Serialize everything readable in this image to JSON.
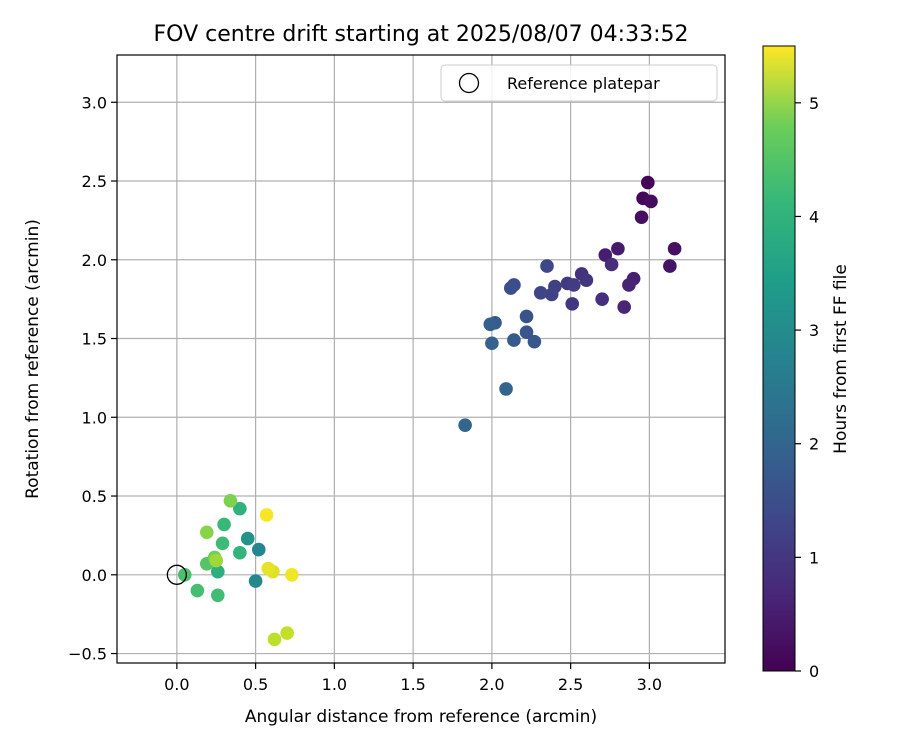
{
  "chart_data": {
    "type": "scatter",
    "title": "FOV centre drift starting at 2025/08/07 04:33:52",
    "xlabel": "Angular distance from reference (arcmin)",
    "ylabel": "Rotation from reference (arcmin)",
    "xlim": [
      -0.38,
      3.48
    ],
    "ylim": [
      -0.56,
      3.3
    ],
    "xticks": [
      "0.0",
      "0.5",
      "1.0",
      "1.5",
      "2.0",
      "2.5",
      "3.0"
    ],
    "yticks": [
      "−0.5",
      "0.0",
      "0.5",
      "1.0",
      "1.5",
      "2.0",
      "2.5",
      "3.0"
    ],
    "grid": true,
    "colormap": "viridis",
    "colorbar": {
      "label": "Hours from first FF file",
      "range": [
        0,
        5.5
      ],
      "ticks": [
        "0",
        "1",
        "2",
        "3",
        "4",
        "5"
      ]
    },
    "legend": {
      "placement": "top-right",
      "entries": [
        {
          "label": "Reference platepar",
          "marker": "open-circle"
        }
      ]
    },
    "reference": {
      "x": 0.0,
      "y": 0.0
    },
    "points": [
      {
        "x": 2.99,
        "y": 2.49,
        "c": 0.05
      },
      {
        "x": 2.96,
        "y": 2.39,
        "c": 0.1
      },
      {
        "x": 3.01,
        "y": 2.37,
        "c": 0.15
      },
      {
        "x": 2.95,
        "y": 2.27,
        "c": 0.2
      },
      {
        "x": 3.16,
        "y": 2.07,
        "c": 0.25
      },
      {
        "x": 3.13,
        "y": 1.96,
        "c": 0.3
      },
      {
        "x": 2.8,
        "y": 2.07,
        "c": 0.4
      },
      {
        "x": 2.72,
        "y": 2.03,
        "c": 0.45
      },
      {
        "x": 2.9,
        "y": 1.88,
        "c": 0.5
      },
      {
        "x": 2.87,
        "y": 1.84,
        "c": 0.55
      },
      {
        "x": 2.84,
        "y": 1.7,
        "c": 0.6
      },
      {
        "x": 2.76,
        "y": 1.97,
        "c": 0.7
      },
      {
        "x": 2.7,
        "y": 1.75,
        "c": 0.75
      },
      {
        "x": 2.57,
        "y": 1.91,
        "c": 0.8
      },
      {
        "x": 2.6,
        "y": 1.87,
        "c": 0.85
      },
      {
        "x": 2.51,
        "y": 1.72,
        "c": 0.9
      },
      {
        "x": 2.48,
        "y": 1.85,
        "c": 0.95
      },
      {
        "x": 2.52,
        "y": 1.84,
        "c": 1.0
      },
      {
        "x": 2.4,
        "y": 1.83,
        "c": 1.05
      },
      {
        "x": 2.38,
        "y": 1.78,
        "c": 1.1
      },
      {
        "x": 2.31,
        "y": 1.79,
        "c": 1.15
      },
      {
        "x": 2.35,
        "y": 1.96,
        "c": 1.2
      },
      {
        "x": 2.14,
        "y": 1.84,
        "c": 1.3
      },
      {
        "x": 2.12,
        "y": 1.82,
        "c": 1.35
      },
      {
        "x": 2.22,
        "y": 1.64,
        "c": 1.4
      },
      {
        "x": 2.22,
        "y": 1.54,
        "c": 1.45
      },
      {
        "x": 2.27,
        "y": 1.48,
        "c": 1.5
      },
      {
        "x": 2.14,
        "y": 1.49,
        "c": 1.55
      },
      {
        "x": 2.02,
        "y": 1.6,
        "c": 1.6
      },
      {
        "x": 1.99,
        "y": 1.59,
        "c": 1.65
      },
      {
        "x": 2.0,
        "y": 1.47,
        "c": 1.7
      },
      {
        "x": 2.09,
        "y": 1.18,
        "c": 1.75
      },
      {
        "x": 1.83,
        "y": 0.95,
        "c": 1.8
      },
      {
        "x": 0.52,
        "y": 0.16,
        "c": 2.55
      },
      {
        "x": 0.5,
        "y": -0.04,
        "c": 2.6
      },
      {
        "x": 0.45,
        "y": 0.23,
        "c": 2.8
      },
      {
        "x": 0.26,
        "y": 0.02,
        "c": 3.45
      },
      {
        "x": 0.4,
        "y": 0.42,
        "c": 3.55
      },
      {
        "x": 0.4,
        "y": 0.14,
        "c": 3.6
      },
      {
        "x": 0.3,
        "y": 0.32,
        "c": 3.7
      },
      {
        "x": 0.29,
        "y": 0.2,
        "c": 3.75
      },
      {
        "x": 0.26,
        "y": -0.13,
        "c": 3.8
      },
      {
        "x": 0.13,
        "y": -0.1,
        "c": 3.85
      },
      {
        "x": 0.05,
        "y": 0.0,
        "c": 3.9
      },
      {
        "x": 0.19,
        "y": 0.07,
        "c": 4.0
      },
      {
        "x": 0.24,
        "y": 0.11,
        "c": 4.3
      },
      {
        "x": 0.34,
        "y": 0.47,
        "c": 4.4
      },
      {
        "x": 0.19,
        "y": 0.27,
        "c": 4.5
      },
      {
        "x": 0.25,
        "y": 0.09,
        "c": 4.7
      },
      {
        "x": 0.62,
        "y": -0.41,
        "c": 4.95
      },
      {
        "x": 0.7,
        "y": -0.37,
        "c": 5.0
      },
      {
        "x": 0.61,
        "y": 0.02,
        "c": 5.2
      },
      {
        "x": 0.58,
        "y": 0.04,
        "c": 5.3
      },
      {
        "x": 0.73,
        "y": 0.0,
        "c": 5.4
      },
      {
        "x": 0.57,
        "y": 0.38,
        "c": 5.45
      }
    ]
  }
}
